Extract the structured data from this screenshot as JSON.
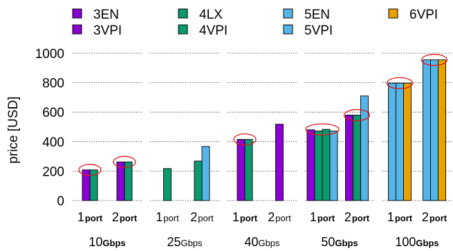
{
  "chart_data": {
    "type": "bar",
    "ylabel": "price [USD]",
    "ylim": [
      0,
      1000
    ],
    "yticks": [
      "0",
      "200",
      "400",
      "600",
      "800",
      "1000"
    ],
    "grid": "horizontal dotted",
    "legend_placement": "top",
    "port_unit": "port",
    "series": [
      {
        "name": "3EN",
        "color": "#8A00D4"
      },
      {
        "name": "3VPI",
        "color": "#8A00D4"
      },
      {
        "name": "4LX",
        "color": "#0A9A6E"
      },
      {
        "name": "4VPI",
        "color": "#0A9A6E"
      },
      {
        "name": "5EN",
        "color": "#55B4E8"
      },
      {
        "name": "5VPI",
        "color": "#55B4E8"
      },
      {
        "name": "6VPI",
        "color": "#E8A200"
      }
    ],
    "groups": [
      {
        "speed": "10",
        "unit": "Gbps",
        "subgroups": [
          {
            "ports": "1",
            "bars": [
              {
                "series": "3EN",
                "value": 208
              },
              {
                "series": "4LX",
                "value": 208
              }
            ],
            "highlight": 208
          },
          {
            "ports": "2",
            "bars": [
              {
                "series": "3EN",
                "value": 262
              },
              {
                "series": "4LX",
                "value": 262
              }
            ],
            "highlight": 262
          }
        ]
      },
      {
        "speed": "25",
        "unit": "Gbps",
        "subgroups": [
          {
            "ports": "1",
            "bars": [
              {
                "series": "4LX",
                "value": 217
              }
            ]
          },
          {
            "ports": "2",
            "bars": [
              {
                "series": "4LX",
                "value": 268
              },
              {
                "series": "5EN",
                "value": 367
              }
            ]
          }
        ]
      },
      {
        "speed": "40",
        "unit": "Gbps",
        "subgroups": [
          {
            "ports": "1",
            "bars": [
              {
                "series": "3VPI",
                "value": 415
              },
              {
                "series": "4VPI",
                "value": 415
              }
            ],
            "highlight": 415
          },
          {
            "ports": "2",
            "bars": [
              {
                "series": "3VPI",
                "value": 518
              }
            ]
          }
        ]
      },
      {
        "speed": "50",
        "unit": "Gbps",
        "subgroups": [
          {
            "ports": "1",
            "bars": [
              {
                "series": "3VPI",
                "value": 480
              },
              {
                "series": "4LX",
                "value": 472
              },
              {
                "series": "4VPI",
                "value": 483
              },
              {
                "series": "5EN",
                "value": 472
              }
            ],
            "highlight": 483
          },
          {
            "ports": "2",
            "bars": [
              {
                "series": "3VPI",
                "value": 580
              },
              {
                "series": "4VPI",
                "value": 580
              },
              {
                "series": "5EN",
                "value": 710
              }
            ],
            "highlight": 580
          }
        ]
      },
      {
        "speed": "100",
        "unit": "Gbps",
        "subgroups": [
          {
            "ports": "1",
            "bars": [
              {
                "series": "5EN",
                "value": 797
              },
              {
                "series": "5VPI",
                "value": 797
              },
              {
                "series": "6VPI",
                "value": 797
              }
            ],
            "highlight": 797
          },
          {
            "ports": "2",
            "bars": [
              {
                "series": "5EN",
                "value": 955
              },
              {
                "series": "5VPI",
                "value": 955
              },
              {
                "series": "6VPI",
                "value": 955
              }
            ],
            "highlight": 955
          }
        ]
      }
    ]
  }
}
